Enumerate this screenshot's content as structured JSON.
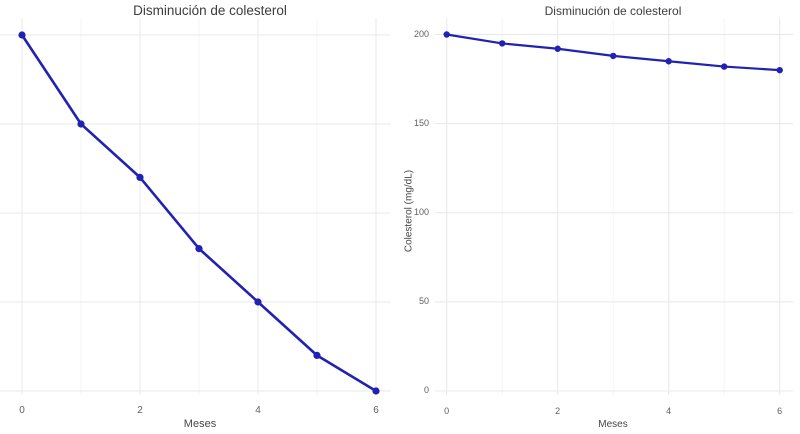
{
  "figure": {
    "background": "#ffffff"
  },
  "colors": {
    "line": "#2222b2",
    "marker": "#2222b2",
    "grid_major": "#e8e8e8",
    "grid_minor": "#f4f4f4",
    "title_text": "#3d3d3d",
    "tick_text": "#606060",
    "axis_label_text": "#474747"
  },
  "chart_data": [
    {
      "type": "line",
      "title": "Disminución de colesterol",
      "xlabel": "Meses",
      "ylabel": "",
      "x": [
        0,
        1,
        2,
        3,
        4,
        5,
        6
      ],
      "series": [
        {
          "name": "Colesterol (mg/dL)",
          "values": [
            200,
            195,
            192,
            188,
            185,
            182,
            180
          ]
        }
      ],
      "xlim": [
        0,
        6
      ],
      "ylim": [
        180,
        200
      ],
      "x_ticks": [
        0,
        2,
        4,
        6
      ],
      "y_ticks": [
        180,
        185,
        190,
        195,
        200
      ],
      "y_tick_labels_visible": false,
      "grid": "on",
      "legend": "none",
      "line_color": "#2222b2",
      "note_axis": "y tick labels cropped out of view on this panel"
    },
    {
      "type": "line",
      "title": "Disminución de colesterol",
      "xlabel": "Meses",
      "ylabel": "Colesterol (mg/dL)",
      "x": [
        0,
        1,
        2,
        3,
        4,
        5,
        6
      ],
      "series": [
        {
          "name": "Colesterol (mg/dL)",
          "values": [
            200,
            195,
            192,
            188,
            185,
            182,
            180
          ]
        }
      ],
      "xlim": [
        0,
        6
      ],
      "ylim": [
        0,
        200
      ],
      "x_ticks": [
        0,
        2,
        4,
        6
      ],
      "y_ticks": [
        0,
        50,
        100,
        150,
        200
      ],
      "y_tick_labels_visible": true,
      "grid": "on",
      "legend": "none",
      "line_color": "#2222b2"
    }
  ]
}
